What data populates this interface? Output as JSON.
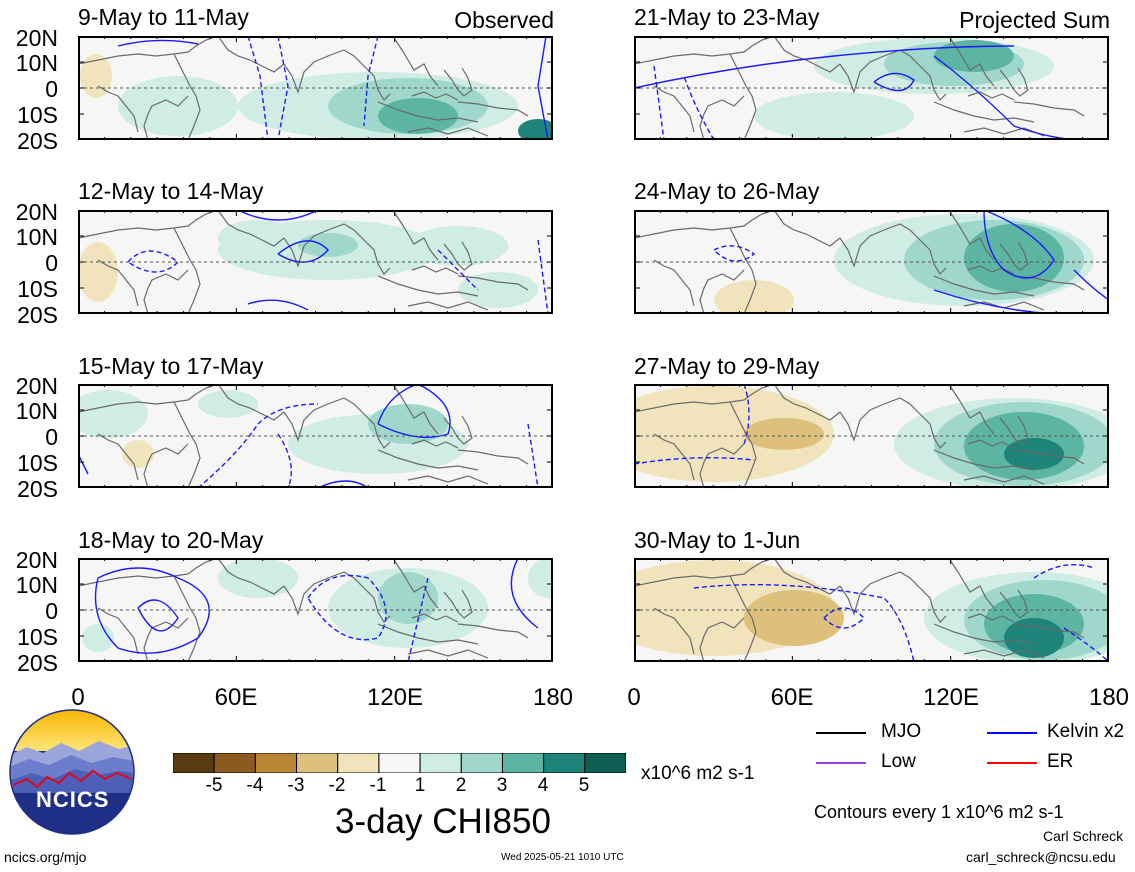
{
  "left_column": {
    "label": "Observed",
    "panels": [
      {
        "title": "9-May to 11-May"
      },
      {
        "title": "12-May to 14-May"
      },
      {
        "title": "15-May to 17-May"
      },
      {
        "title": "18-May to 20-May"
      }
    ]
  },
  "right_column": {
    "label": "Projected Sum",
    "panels": [
      {
        "title": "21-May to 23-May"
      },
      {
        "title": "24-May to 26-May"
      },
      {
        "title": "27-May to 29-May"
      },
      {
        "title": "30-May to 1-Jun"
      }
    ]
  },
  "latitude_labels": [
    "20N",
    "10N",
    "0",
    "10S",
    "20S"
  ],
  "longitude_labels": [
    "0",
    "60E",
    "120E",
    "180"
  ],
  "colorbar": {
    "tick_labels": [
      "-5",
      "-4",
      "-3",
      "-2",
      "-1",
      "1",
      "2",
      "3",
      "4",
      "5"
    ],
    "colors": [
      "#5a3a10",
      "#8c5a1e",
      "#b98634",
      "#dcc07c",
      "#f1e4bd",
      "#f6f6f6",
      "#cfece5",
      "#9fd8cb",
      "#5cb4a3",
      "#1e8378",
      "#0e5e52"
    ],
    "units": "x10^6 m2 s-1"
  },
  "main_title": "3-day CHI850",
  "legend": {
    "items": [
      {
        "label": "MJO",
        "color": "#000000"
      },
      {
        "label": "Kelvin x2",
        "color": "#0000ff"
      },
      {
        "label": "Low",
        "color": "#9a3fe0"
      },
      {
        "label": "ER",
        "color": "#ff0000"
      }
    ],
    "contour_note": "Contours every 1 x10^6 m2 s-1"
  },
  "logo": {
    "text": "NCICS"
  },
  "footer": {
    "url": "ncics.org/mjo",
    "timestamp": "Wed 2025-05-21 1010 UTC",
    "author": "Carl Schreck",
    "email": "carl_schreck@ncsu.edu"
  }
}
